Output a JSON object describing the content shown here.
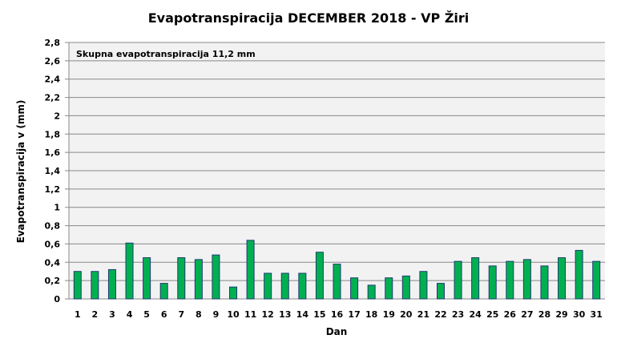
{
  "chart_data": {
    "type": "bar",
    "title": "Evapotranspiracija  DECEMBER 2018 - VP Žiri",
    "annotation": "Skupna evapotranspiracija  11,2 mm",
    "xlabel": "Dan",
    "ylabel": "Evapotranspiracija v  (mm)",
    "ylim": [
      0,
      2.8
    ],
    "yticks": [
      "0",
      "0,2",
      "0,4",
      "0,6",
      "0,8",
      "1",
      "1,2",
      "1,4",
      "1,6",
      "1,8",
      "2",
      "2,2",
      "2,4",
      "2,6",
      "2,8"
    ],
    "categories": [
      "1",
      "2",
      "3",
      "4",
      "5",
      "6",
      "7",
      "8",
      "9",
      "10",
      "11",
      "12",
      "13",
      "14",
      "15",
      "16",
      "17",
      "18",
      "19",
      "20",
      "21",
      "22",
      "23",
      "24",
      "25",
      "26",
      "27",
      "28",
      "29",
      "30",
      "31"
    ],
    "values": [
      0.3,
      0.3,
      0.32,
      0.61,
      0.45,
      0.17,
      0.45,
      0.43,
      0.48,
      0.13,
      0.64,
      0.28,
      0.28,
      0.28,
      0.51,
      0.38,
      0.23,
      0.15,
      0.23,
      0.25,
      0.3,
      0.17,
      0.41,
      0.45,
      0.36,
      0.41,
      0.43,
      0.36,
      0.45,
      0.53,
      0.41
    ],
    "grid": true,
    "colors": {
      "bar": "#00b050",
      "bar_edge": "#1f3b73",
      "plot_bg": "#f2f2f2",
      "grid": "#888888"
    }
  }
}
